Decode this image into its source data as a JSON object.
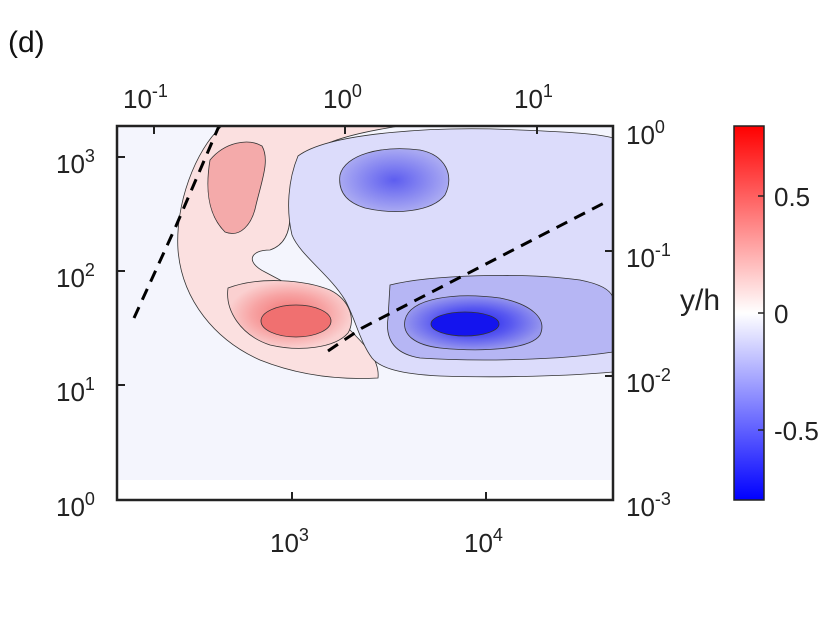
{
  "panel_label": "(d)",
  "chart_data": {
    "type": "heatmap",
    "subtype": "filled-contour",
    "title": "",
    "xlabel": "",
    "ylabel": "",
    "x_bottom": {
      "scale": "log",
      "range": [
        130,
        40000
      ],
      "ticks": [
        {
          "base": "10",
          "exp": "3",
          "value": 1000
        },
        {
          "base": "10",
          "exp": "4",
          "value": 10000
        }
      ]
    },
    "x_top": {
      "scale": "log",
      "range": [
        0.04,
        25
      ],
      "ticks": [
        {
          "base": "10",
          "exp": "-1",
          "value": 0.1
        },
        {
          "base": "10",
          "exp": "0",
          "value": 1
        },
        {
          "base": "10",
          "exp": "1",
          "value": 10
        }
      ]
    },
    "y_left": {
      "scale": "log",
      "range": [
        1,
        2000
      ],
      "ticks": [
        {
          "base": "10",
          "exp": "0",
          "value": 1
        },
        {
          "base": "10",
          "exp": "1",
          "value": 10
        },
        {
          "base": "10",
          "exp": "2",
          "value": 100
        },
        {
          "base": "10",
          "exp": "3",
          "value": 1000
        }
      ]
    },
    "y_right": {
      "label": "y/h",
      "scale": "log",
      "range": [
        0.001,
        1
      ],
      "ticks": [
        {
          "base": "10",
          "exp": "-3",
          "value": 0.001
        },
        {
          "base": "10",
          "exp": "-2",
          "value": 0.01
        },
        {
          "base": "10",
          "exp": "-1",
          "value": 0.1
        },
        {
          "base": "10",
          "exp": "0",
          "value": 1
        }
      ]
    },
    "colorbar": {
      "range": [
        -0.8,
        0.8
      ],
      "ticks": [
        {
          "label": "0.5",
          "value": 0.5
        },
        {
          "label": "0",
          "value": 0
        },
        {
          "label": "-0.5",
          "value": -0.5
        }
      ],
      "colors": {
        "positive": "#ff0000",
        "zero": "#ffffff",
        "negative": "#0000ff"
      }
    },
    "regions": [
      {
        "name": "positive lobe (outer)",
        "x": [
          200,
          3500
        ],
        "y": [
          13,
          2000
        ],
        "value": 0.1
      },
      {
        "name": "positive core",
        "x": [
          700,
          2200
        ],
        "y": [
          22,
          55
        ],
        "value": 0.45
      },
      {
        "name": "positive upper patch",
        "x": [
          320,
          700
        ],
        "y": [
          350,
          1500
        ],
        "value": 0.3
      },
      {
        "name": "negative lobe (outer)",
        "x": [
          1200,
          40000
        ],
        "y": [
          13,
          1500
        ],
        "value": -0.15
      },
      {
        "name": "negative core",
        "x": [
          4500,
          20000
        ],
        "y": [
          20,
          45
        ],
        "value": -0.7
      },
      {
        "name": "negative upper patch",
        "x": [
          2200,
          5000
        ],
        "y": [
          400,
          1100
        ],
        "value": -0.45
      }
    ],
    "dashed_lines": [
      {
        "points": [
          [
            140,
            40
          ],
          [
            240,
            420
          ],
          [
            330,
            2000
          ]
        ]
      },
      {
        "points": [
          [
            1550,
            20
          ],
          [
            2200,
            28
          ],
          [
            40000,
            450
          ]
        ]
      }
    ]
  }
}
